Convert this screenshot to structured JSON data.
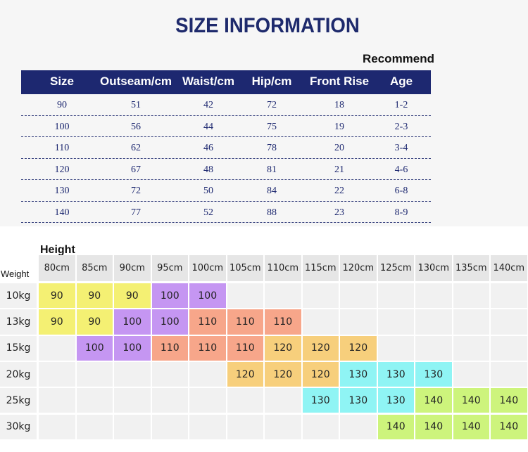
{
  "title": "SIZE INFORMATION",
  "recommend": "Recommend",
  "size_table": {
    "headers": [
      "Size",
      "Outseam/cm",
      "Waist/cm",
      "Hip/cm",
      "Front Rise",
      "Age"
    ],
    "rows": [
      [
        90,
        51,
        42,
        72,
        18,
        "1-2"
      ],
      [
        100,
        56,
        44,
        75,
        19,
        "2-3"
      ],
      [
        110,
        62,
        46,
        78,
        20,
        "3-4"
      ],
      [
        120,
        67,
        48,
        81,
        21,
        "4-6"
      ],
      [
        130,
        72,
        50,
        84,
        22,
        "6-8"
      ],
      [
        140,
        77,
        52,
        88,
        23,
        "8-9"
      ]
    ]
  },
  "grid": {
    "height_label": "Height",
    "weight_label": "Weight",
    "heights": [
      "80cm",
      "85cm",
      "90cm",
      "95cm",
      "100cm",
      "105cm",
      "110cm",
      "115cm",
      "120cm",
      "125cm",
      "130cm",
      "135cm",
      "140cm"
    ],
    "weights": [
      "10kg",
      "13kg",
      "15kg",
      "20kg",
      "25kg",
      "30kg"
    ],
    "cells": [
      [
        90,
        90,
        90,
        100,
        100,
        null,
        null,
        null,
        null,
        null,
        null,
        null,
        null
      ],
      [
        90,
        90,
        100,
        100,
        110,
        110,
        110,
        null,
        null,
        null,
        null,
        null,
        null
      ],
      [
        null,
        100,
        100,
        110,
        110,
        110,
        120,
        120,
        120,
        null,
        null,
        null,
        null
      ],
      [
        null,
        null,
        null,
        null,
        null,
        120,
        120,
        120,
        130,
        130,
        130,
        null,
        null
      ],
      [
        null,
        null,
        null,
        null,
        null,
        null,
        null,
        130,
        130,
        130,
        140,
        140,
        140
      ],
      [
        null,
        null,
        null,
        null,
        null,
        null,
        null,
        null,
        null,
        140,
        140,
        140,
        140
      ]
    ]
  }
}
